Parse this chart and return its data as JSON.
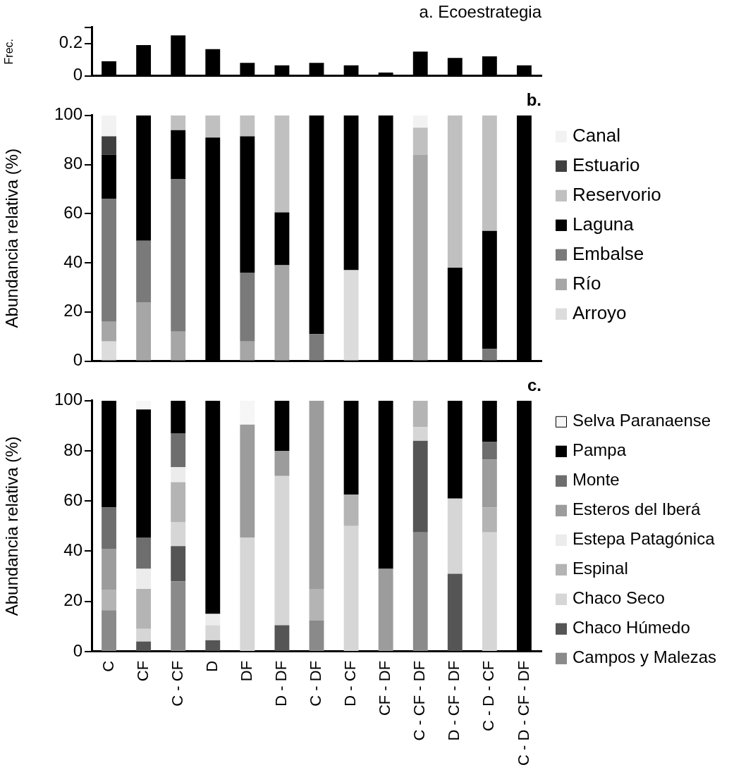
{
  "chart_data": [
    {
      "type": "bar",
      "title": "a. Ecoestrategia",
      "ylabel": "Frec.",
      "categories": [
        null,
        null,
        null,
        null,
        null,
        null,
        null,
        null,
        null,
        null,
        null,
        null,
        null
      ],
      "values": [
        0.09,
        0.19,
        0.25,
        0.165,
        0.08,
        0.065,
        0.08,
        0.065,
        0.02,
        0.15,
        0.11,
        0.12,
        0.065
      ],
      "color": "#000000",
      "ylim": [
        0,
        0.3
      ],
      "yticks": [
        0,
        0.2,
        {
          "value": 0.3,
          "label": null
        }
      ],
      "tick_labels": "y"
    },
    {
      "type": "bar",
      "title": "b.",
      "ylabel": "Abundancia relativa (%)",
      "categories": [
        null,
        null,
        null,
        null,
        null,
        null,
        null,
        null,
        null,
        null,
        null,
        null,
        null
      ],
      "stacked": true,
      "ylim": [
        0,
        100
      ],
      "yticks": [
        0,
        20,
        40,
        60,
        80,
        100
      ],
      "tick_labels": "y",
      "legend": "right",
      "series": [
        {
          "name": "Arroyo",
          "color": "#dcdcdc",
          "values": [
            8,
            0,
            0,
            0,
            0,
            0,
            0,
            37,
            0,
            0,
            0,
            0,
            0
          ]
        },
        {
          "name": "Río",
          "color": "#a6a6a6",
          "values": [
            8,
            24,
            12,
            0,
            8,
            39,
            0,
            0,
            0,
            84,
            0,
            0,
            0
          ]
        },
        {
          "name": "Embalse",
          "color": "#7a7a7a",
          "values": [
            50,
            25,
            62,
            0,
            28,
            0,
            11,
            0,
            0,
            0,
            0,
            5,
            0
          ]
        },
        {
          "name": "Laguna",
          "color": "#000000",
          "values": [
            18,
            51,
            20,
            91,
            55.5,
            21.5,
            89,
            63,
            100,
            0,
            38,
            48,
            100
          ]
        },
        {
          "name": "Reservorio",
          "color": "#c0c0c0",
          "values": [
            0,
            0,
            6,
            9,
            8.5,
            39.5,
            0,
            0,
            0,
            11,
            62,
            47,
            0
          ]
        },
        {
          "name": "Estuario",
          "color": "#404040",
          "values": [
            7.5,
            0,
            0,
            0,
            0,
            0,
            0,
            0,
            0,
            0,
            0,
            0,
            0
          ]
        },
        {
          "name": "Canal",
          "color": "#f2f2f2",
          "values": [
            8.5,
            0,
            0,
            0,
            0,
            0,
            0,
            0,
            0,
            5,
            0,
            0,
            0
          ]
        }
      ]
    },
    {
      "type": "bar",
      "title": "c.",
      "ylabel": "Abundancia relativa (%)",
      "categories": [
        "C",
        "CF",
        "C - CF",
        "D",
        "DF",
        "D - DF",
        "C - DF",
        "D - CF",
        "CF - DF",
        "C - CF - DF",
        "D - CF - DF",
        "C - D - CF",
        "C - D - CF - DF"
      ],
      "stacked": true,
      "ylim": [
        0,
        100
      ],
      "yticks": [
        0,
        20,
        40,
        60,
        80,
        100
      ],
      "legend": "right",
      "series": [
        {
          "name": "Campos y Malezas",
          "color": "#8a8a8a",
          "values": [
            16.5,
            0,
            28,
            0,
            0,
            0,
            12.5,
            0,
            0,
            47.5,
            0,
            0,
            0
          ]
        },
        {
          "name": "Chaco Húmedo",
          "color": "#555555",
          "values": [
            0,
            4,
            14,
            4.5,
            0,
            10.5,
            0,
            0,
            0,
            36.5,
            31,
            0,
            0
          ]
        },
        {
          "name": "Chaco Seco",
          "color": "#d6d6d6",
          "values": [
            0,
            5,
            9.5,
            6,
            45.5,
            59.5,
            0,
            50,
            0,
            5.5,
            30,
            47.5,
            0
          ]
        },
        {
          "name": "Espinal",
          "color": "#b4b4b4",
          "values": [
            8,
            16,
            16,
            0,
            0,
            0,
            12.5,
            12.5,
            0,
            10.5,
            0,
            10,
            0
          ]
        },
        {
          "name": "Estepa Patagónica",
          "color": "#ececec",
          "values": [
            0,
            8,
            6,
            4.5,
            0,
            0,
            0,
            0,
            0,
            0,
            0,
            0,
            0
          ]
        },
        {
          "name": "Esteros del Iberá",
          "color": "#9c9c9c",
          "values": [
            16.5,
            0,
            0,
            0,
            45,
            10,
            75,
            0,
            33,
            0,
            0,
            19,
            0
          ]
        },
        {
          "name": "Monte",
          "color": "#6e6e6e",
          "values": [
            16.5,
            12.5,
            13.5,
            0,
            0,
            0,
            0,
            0,
            0,
            0,
            0,
            7,
            0
          ]
        },
        {
          "name": "Pampa",
          "color": "#000000",
          "values": [
            42.5,
            51,
            13,
            85,
            0,
            20,
            0,
            37.5,
            67,
            0,
            39,
            16.5,
            100
          ]
        },
        {
          "name": "Selva Paranaense",
          "color": "#f6f6f6",
          "values": [
            0,
            3.5,
            0,
            0,
            9.5,
            0,
            0,
            0,
            0,
            0,
            0,
            0,
            0
          ]
        }
      ]
    }
  ]
}
